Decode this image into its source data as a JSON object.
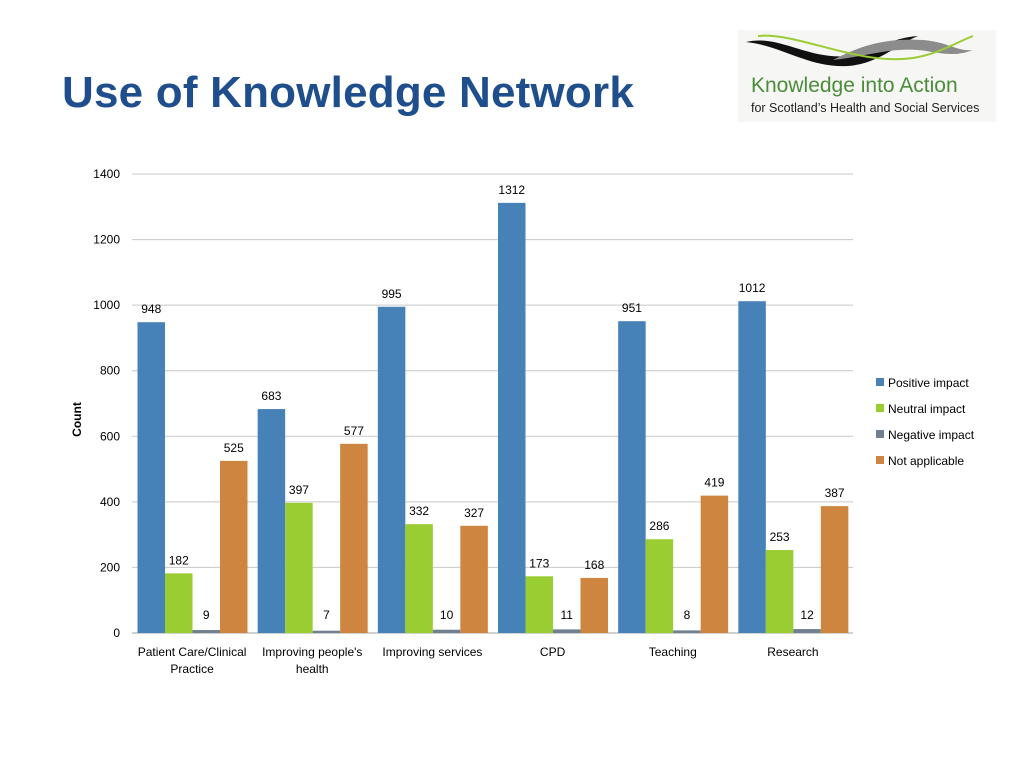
{
  "slide": {
    "title": "Use of Knowledge Network"
  },
  "logo": {
    "line1": "Knowledge into Action",
    "line2": "for Scotland’s Health and Social Services",
    "swoosh_colors": [
      "#111111",
      "#8c8c8c",
      "#9acd32"
    ]
  },
  "chart_data": {
    "type": "bar",
    "title": "",
    "xlabel": "",
    "ylabel": "Count",
    "ylim": [
      0,
      1400
    ],
    "yticks": [
      0,
      200,
      400,
      600,
      800,
      1000,
      1200,
      1400
    ],
    "grid": true,
    "legend_position": "right",
    "categories": [
      [
        "Patient Care/Clinical",
        "Practice"
      ],
      [
        "Improving people's",
        "health"
      ],
      [
        "Improving services"
      ],
      [
        "CPD"
      ],
      [
        "Teaching"
      ],
      [
        "Research"
      ]
    ],
    "series": [
      {
        "name": "Positive impact",
        "color": "#4682b8",
        "values": [
          948,
          683,
          995,
          1312,
          951,
          1012
        ]
      },
      {
        "name": "Neutral impact",
        "color": "#9acd32",
        "values": [
          182,
          397,
          332,
          173,
          286,
          253
        ]
      },
      {
        "name": "Negative impact",
        "color": "#708090",
        "values": [
          9,
          7,
          10,
          11,
          8,
          12
        ]
      },
      {
        "name": "Not applicable",
        "color": "#cd853f",
        "values": [
          525,
          577,
          327,
          168,
          419,
          387
        ]
      }
    ]
  }
}
